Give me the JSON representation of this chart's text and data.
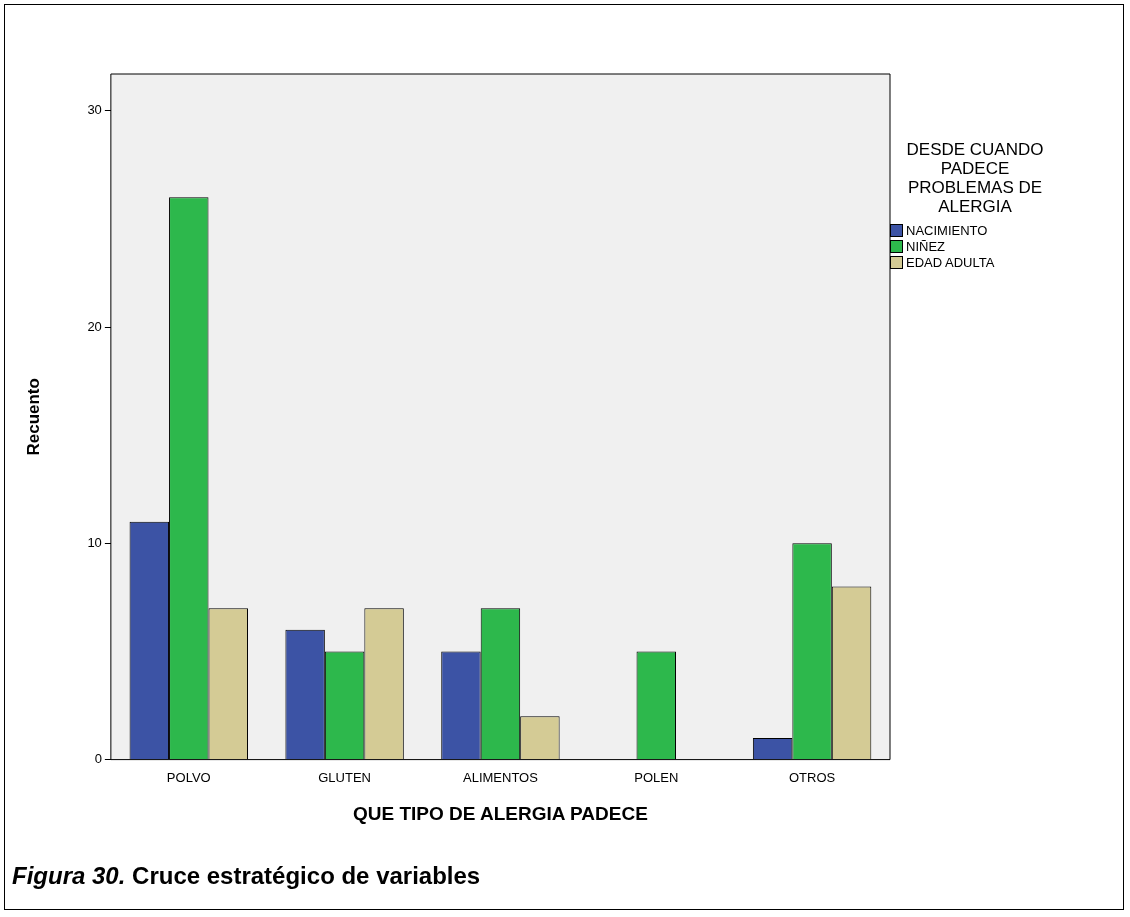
{
  "chart_data": {
    "type": "bar",
    "xlabel": "QUE TIPO DE ALERGIA PADECE",
    "ylabel": "Recuento",
    "legend_title": "DESDE CUANDO PADECE PROBLEMAS DE ALERGIA",
    "legend": "right",
    "categories": [
      "POLVO",
      "GLUTEN",
      "ALIMENTOS",
      "POLEN",
      "OTROS"
    ],
    "series": [
      {
        "name": "NACIMIENTO",
        "color": "#3c53a5",
        "values": [
          11,
          6,
          5,
          null,
          1
        ]
      },
      {
        "name": "NIÑEZ",
        "color": "#2db84c",
        "values": [
          26,
          5,
          7,
          5,
          10
        ]
      },
      {
        "name": "EDAD ADULTA",
        "color": "#d4cb95",
        "values": [
          7,
          7,
          2,
          null,
          8
        ]
      }
    ],
    "ylim": [
      0,
      31.7
    ],
    "yticks": [
      0,
      10,
      20,
      30
    ],
    "grid": false,
    "annotations": [
      "Figura 30. Cruce estratégico de variables"
    ]
  }
}
